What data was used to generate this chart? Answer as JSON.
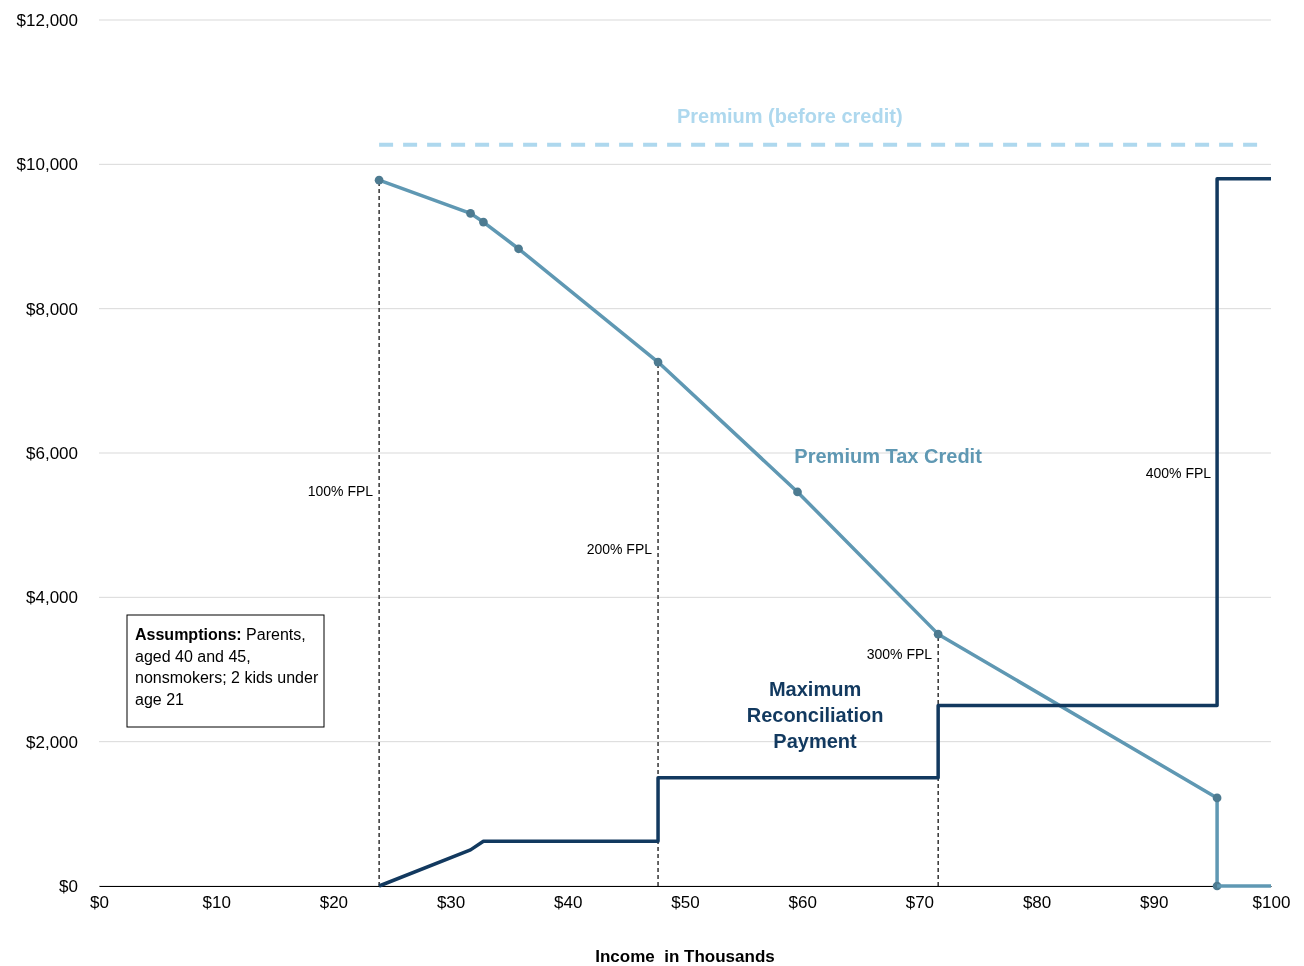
{
  "chart_data": {
    "type": "line",
    "xlabel": "Income  in Thousands",
    "xlim": [
      0,
      100
    ],
    "ylim": [
      0,
      12000
    ],
    "xticks": [
      {
        "value": 0,
        "label": "$0"
      },
      {
        "value": 10,
        "label": "$10"
      },
      {
        "value": 20,
        "label": "$20"
      },
      {
        "value": 30,
        "label": "$30"
      },
      {
        "value": 40,
        "label": "$40"
      },
      {
        "value": 50,
        "label": "$50"
      },
      {
        "value": 60,
        "label": "$60"
      },
      {
        "value": 70,
        "label": "$70"
      },
      {
        "value": 80,
        "label": "$80"
      },
      {
        "value": 90,
        "label": "$90"
      },
      {
        "value": 100,
        "label": "$100"
      }
    ],
    "yticks": [
      {
        "value": 0,
        "label": "$0"
      },
      {
        "value": 2000,
        "label": "$2,000"
      },
      {
        "value": 4000,
        "label": "$4,000"
      },
      {
        "value": 6000,
        "label": "$6,000"
      },
      {
        "value": 8000,
        "label": "$8,000"
      },
      {
        "value": 10000,
        "label": "$10,000"
      },
      {
        "value": 12000,
        "label": "$12,000"
      }
    ],
    "grid": "y",
    "series": [
      {
        "color": "#000000",
        "line_style": "dashed",
        "x": [
          23.9,
          23.9
        ],
        "values": [
          0,
          9780
        ]
      },
      {
        "color": "#000000",
        "line_style": "dashed",
        "x": [
          47.7,
          47.7
        ],
        "values": [
          0,
          7260
        ]
      },
      {
        "color": "#000000",
        "line_style": "dashed",
        "x": [
          71.6,
          71.6
        ],
        "values": [
          0,
          3490
        ]
      },
      {
        "name": "Premium (before credit)",
        "color": "#aed8ee",
        "line_style": "dashed",
        "marker": "none",
        "x": [
          23.9,
          99.1
        ],
        "values": [
          10270,
          10270
        ]
      },
      {
        "name": "Premium Tax Credit",
        "color": "#5f98b3",
        "line_style": "solid",
        "marker": "circle",
        "x": [
          23.9,
          31.7,
          32.8,
          35.8,
          47.7,
          59.6,
          71.6,
          95.4,
          95.4
        ],
        "values": [
          9780,
          9320,
          9200,
          8830,
          7260,
          5460,
          3490,
          1220,
          0
        ]
      },
      {
        "color": "#5f98b3",
        "line_style": "solid",
        "marker": "none",
        "x": [
          95.4,
          100
        ],
        "values": [
          0,
          0
        ]
      },
      {
        "name": "Maximum Reconciliation Payment",
        "color": "#12395f",
        "line_style": "solid",
        "marker": "none",
        "x": [
          23.9,
          31.7,
          32.8,
          47.7,
          47.7,
          71.6,
          71.6,
          95.4,
          95.4,
          100
        ],
        "values": [
          0,
          500,
          620,
          620,
          1500,
          1500,
          2500,
          2500,
          9800,
          9800
        ]
      }
    ],
    "annotations": [
      {
        "text": "100% FPL",
        "x": 23.9,
        "y": 5400
      },
      {
        "text": "200% FPL",
        "x": 47.7,
        "y": 4600
      },
      {
        "text": "300% FPL",
        "x": 71.6,
        "y": 3150
      },
      {
        "text": "400% FPL",
        "x": 95.4,
        "y": 5650
      },
      "Assumptions: Parents, aged 40 and 45, nonsmokers; 2 kids under age 21"
    ]
  }
}
